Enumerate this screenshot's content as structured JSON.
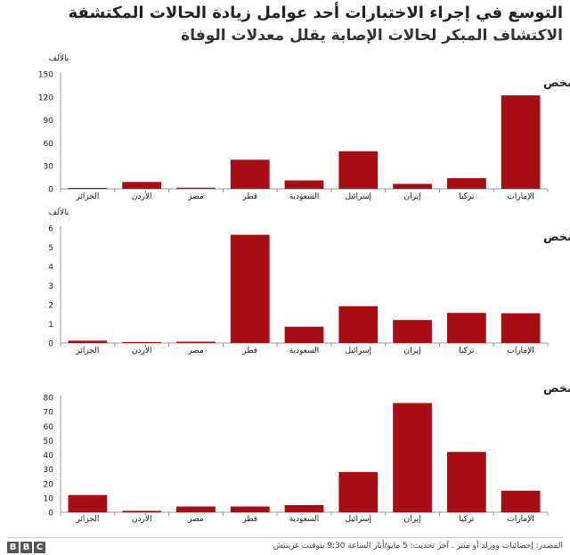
{
  "header": {
    "title": "التوسع في إجراء الاختبارات أحد عوامل زيادة الحالات المكتشفة",
    "subtitle": "الاكتشاف المبكر لحالات الإصابة يقلل معدلات الوفاة"
  },
  "colors": {
    "bar": "#a50e14",
    "axis": "#999999",
    "text": "#222222"
  },
  "chart_data": [
    {
      "type": "bar",
      "title": "معدل الاختبارات بين كل مليون شخص",
      "unit_label": "بالألف",
      "categories": [
        "الجزائر",
        "الأردن",
        "مصر",
        "قطر",
        "السعودية",
        "إسرائيل",
        "إيران",
        "تركيا",
        "الإمارات"
      ],
      "values": [
        0.3,
        9,
        1.5,
        38,
        11,
        49,
        6.5,
        14,
        122
      ],
      "yticks": [
        0,
        30,
        60,
        90,
        120,
        150
      ],
      "ylim": [
        0,
        150
      ],
      "xlabel": "",
      "ylabel": "بالألف"
    },
    {
      "type": "bar",
      "title": "معدل الإصابات بين كل مليون شخص",
      "unit_label": "بالألف",
      "categories": [
        "الجزائر",
        "الأردن",
        "مصر",
        "قطر",
        "السعودية",
        "إسرائيل",
        "إيران",
        "تركيا",
        "الإمارات"
      ],
      "values": [
        0.12,
        0.05,
        0.07,
        5.65,
        0.85,
        1.92,
        1.2,
        1.57,
        1.55
      ],
      "yticks": [
        0,
        1,
        2,
        3,
        4,
        5,
        6
      ],
      "ylim": [
        0,
        6
      ],
      "xlabel": "",
      "ylabel": "بالألف"
    },
    {
      "type": "bar",
      "title": "معدل الوفيات بين كل مليون شخص",
      "unit_label": "",
      "categories": [
        "الجزائر",
        "الأردن",
        "مصر",
        "قطر",
        "السعودية",
        "إسرائيل",
        "إيران",
        "تركيا",
        "الإمارات"
      ],
      "values": [
        12,
        1,
        4,
        4,
        5,
        28,
        76,
        42,
        15
      ],
      "yticks": [
        0,
        10,
        20,
        30,
        40,
        50,
        60,
        70,
        80
      ],
      "ylim": [
        0,
        80
      ],
      "xlabel": "",
      "ylabel": ""
    }
  ],
  "footer": {
    "logo": [
      "B",
      "B",
      "C"
    ],
    "source": "المصدر: إحصائيات وورلد أو ميتر . آخر تحديث: 5 مايو/أيار الساعة 9:30 بتوقيت غرينتش"
  }
}
